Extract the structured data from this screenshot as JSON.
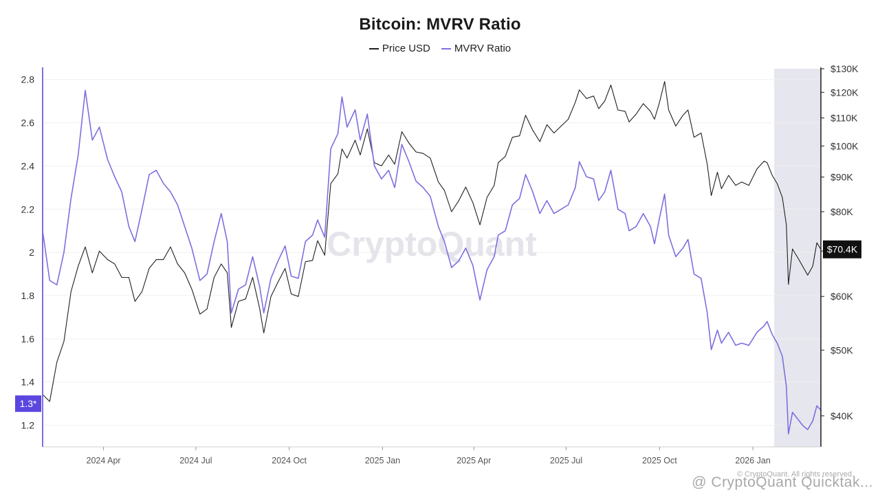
{
  "chart_data": {
    "type": "line",
    "title": "Bitcoin: MVRV Ratio",
    "legend": {
      "position": "top-center",
      "entries": [
        "Price USD",
        "MVRV Ratio"
      ]
    },
    "x_ticks": [
      "2024 Apr",
      "2024 Jul",
      "2024 Oct",
      "2025 Jan",
      "2025 Apr",
      "2025 Jul",
      "2025 Oct",
      "2026 Jan"
    ],
    "x_range": [
      "2024-02-01",
      "2026-03-09"
    ],
    "y_left": {
      "label": "",
      "ticks": [
        "1.2",
        "1.4",
        "1.6",
        "1.8",
        "2",
        "2.2",
        "2.4",
        "2.6",
        "2.8"
      ],
      "range": [
        1.1,
        2.85
      ],
      "scale": "linear"
    },
    "y_right": {
      "label": "",
      "ticks": [
        "$40K",
        "$50K",
        "$60K",
        "$70K",
        "$80K",
        "$90K",
        "$100K",
        "$110K",
        "$120K",
        "$130K"
      ],
      "range": [
        36000,
        130000
      ],
      "scale": "log"
    },
    "current_labels": {
      "mvrv": "1.3*",
      "price": "$70.4K"
    },
    "highlight_region": {
      "start": "2026-01-22",
      "end": "2026-03-09"
    },
    "grid": true,
    "series": [
      {
        "name": "Price USD",
        "color": "#1f1f1f",
        "points": [
          [
            "2024-02-01",
            43000
          ],
          [
            "2024-02-08",
            42000
          ],
          [
            "2024-02-15",
            48000
          ],
          [
            "2024-02-22",
            51500
          ],
          [
            "2024-02-29",
            61000
          ],
          [
            "2024-03-07",
            66500
          ],
          [
            "2024-03-14",
            71000
          ],
          [
            "2024-03-21",
            65000
          ],
          [
            "2024-03-28",
            70000
          ],
          [
            "2024-04-05",
            68000
          ],
          [
            "2024-04-12",
            67000
          ],
          [
            "2024-04-19",
            64000
          ],
          [
            "2024-04-26",
            64000
          ],
          [
            "2024-05-02",
            59000
          ],
          [
            "2024-05-09",
            61000
          ],
          [
            "2024-05-16",
            66000
          ],
          [
            "2024-05-23",
            68000
          ],
          [
            "2024-05-30",
            68000
          ],
          [
            "2024-06-06",
            71000
          ],
          [
            "2024-06-13",
            67000
          ],
          [
            "2024-06-20",
            65000
          ],
          [
            "2024-06-27",
            61500
          ],
          [
            "2024-07-05",
            56500
          ],
          [
            "2024-07-12",
            57500
          ],
          [
            "2024-07-19",
            64000
          ],
          [
            "2024-07-26",
            67000
          ],
          [
            "2024-08-01",
            65000
          ],
          [
            "2024-08-05",
            54000
          ],
          [
            "2024-08-12",
            59000
          ],
          [
            "2024-08-19",
            59500
          ],
          [
            "2024-08-26",
            64000
          ],
          [
            "2024-09-02",
            57500
          ],
          [
            "2024-09-06",
            53000
          ],
          [
            "2024-09-13",
            60000
          ],
          [
            "2024-09-20",
            63000
          ],
          [
            "2024-09-27",
            66000
          ],
          [
            "2024-10-03",
            60500
          ],
          [
            "2024-10-10",
            60000
          ],
          [
            "2024-10-17",
            67500
          ],
          [
            "2024-10-24",
            67800
          ],
          [
            "2024-10-29",
            72500
          ],
          [
            "2024-11-05",
            69000
          ],
          [
            "2024-11-11",
            88000
          ],
          [
            "2024-11-18",
            91000
          ],
          [
            "2024-11-22",
            99000
          ],
          [
            "2024-11-27",
            96000
          ],
          [
            "2024-12-05",
            102000
          ],
          [
            "2024-12-10",
            97000
          ],
          [
            "2024-12-17",
            106000
          ],
          [
            "2024-12-24",
            94500
          ],
          [
            "2024-12-31",
            93500
          ],
          [
            "2025-01-07",
            97000
          ],
          [
            "2025-01-13",
            94000
          ],
          [
            "2025-01-20",
            105000
          ],
          [
            "2025-01-27",
            101000
          ],
          [
            "2025-02-03",
            98000
          ],
          [
            "2025-02-10",
            97500
          ],
          [
            "2025-02-17",
            96000
          ],
          [
            "2025-02-25",
            88500
          ],
          [
            "2025-03-03",
            86000
          ],
          [
            "2025-03-10",
            80000
          ],
          [
            "2025-03-17",
            83000
          ],
          [
            "2025-03-24",
            87000
          ],
          [
            "2025-03-31",
            82500
          ],
          [
            "2025-04-07",
            76500
          ],
          [
            "2025-04-14",
            84000
          ],
          [
            "2025-04-21",
            87500
          ],
          [
            "2025-04-25",
            94500
          ],
          [
            "2025-05-02",
            96500
          ],
          [
            "2025-05-09",
            103000
          ],
          [
            "2025-05-16",
            103500
          ],
          [
            "2025-05-22",
            111000
          ],
          [
            "2025-05-29",
            105500
          ],
          [
            "2025-06-05",
            101500
          ],
          [
            "2025-06-12",
            107500
          ],
          [
            "2025-06-19",
            104500
          ],
          [
            "2025-06-26",
            107000
          ],
          [
            "2025-07-03",
            109500
          ],
          [
            "2025-07-10",
            116000
          ],
          [
            "2025-07-14",
            121000
          ],
          [
            "2025-07-21",
            117500
          ],
          [
            "2025-07-28",
            118500
          ],
          [
            "2025-08-02",
            113500
          ],
          [
            "2025-08-08",
            116500
          ],
          [
            "2025-08-14",
            123000
          ],
          [
            "2025-08-21",
            113000
          ],
          [
            "2025-08-28",
            112500
          ],
          [
            "2025-09-01",
            108500
          ],
          [
            "2025-09-08",
            111500
          ],
          [
            "2025-09-15",
            115500
          ],
          [
            "2025-09-22",
            112500
          ],
          [
            "2025-09-26",
            109500
          ],
          [
            "2025-10-01",
            116000
          ],
          [
            "2025-10-06",
            124500
          ],
          [
            "2025-10-10",
            113000
          ],
          [
            "2025-10-17",
            107000
          ],
          [
            "2025-10-24",
            111000
          ],
          [
            "2025-10-29",
            113000
          ],
          [
            "2025-11-04",
            103000
          ],
          [
            "2025-11-11",
            104500
          ],
          [
            "2025-11-17",
            94000
          ],
          [
            "2025-11-21",
            84500
          ],
          [
            "2025-11-27",
            91500
          ],
          [
            "2025-12-01",
            86500
          ],
          [
            "2025-12-08",
            90500
          ],
          [
            "2025-12-15",
            87500
          ],
          [
            "2025-12-21",
            88500
          ],
          [
            "2025-12-28",
            87500
          ],
          [
            "2026-01-05",
            92500
          ],
          [
            "2026-01-12",
            95000
          ],
          [
            "2026-01-15",
            94500
          ],
          [
            "2026-01-20",
            90500
          ],
          [
            "2026-01-25",
            88000
          ],
          [
            "2026-01-30",
            84000
          ],
          [
            "2026-02-03",
            76500
          ],
          [
            "2026-02-05",
            62500
          ],
          [
            "2026-02-09",
            70500
          ],
          [
            "2026-02-14",
            68500
          ],
          [
            "2026-02-19",
            66500
          ],
          [
            "2026-02-24",
            64500
          ],
          [
            "2026-03-01",
            66500
          ],
          [
            "2026-03-05",
            72000
          ],
          [
            "2026-03-09",
            70400
          ]
        ]
      },
      {
        "name": "MVRV Ratio",
        "color": "#7b6fe0",
        "points": [
          [
            "2024-02-01",
            2.1
          ],
          [
            "2024-02-08",
            1.87
          ],
          [
            "2024-02-15",
            1.85
          ],
          [
            "2024-02-22",
            2.0
          ],
          [
            "2024-02-29",
            2.25
          ],
          [
            "2024-03-07",
            2.45
          ],
          [
            "2024-03-14",
            2.75
          ],
          [
            "2024-03-21",
            2.52
          ],
          [
            "2024-03-28",
            2.58
          ],
          [
            "2024-04-05",
            2.43
          ],
          [
            "2024-04-12",
            2.35
          ],
          [
            "2024-04-19",
            2.28
          ],
          [
            "2024-04-26",
            2.12
          ],
          [
            "2024-05-02",
            2.05
          ],
          [
            "2024-05-09",
            2.2
          ],
          [
            "2024-05-16",
            2.36
          ],
          [
            "2024-05-23",
            2.38
          ],
          [
            "2024-05-30",
            2.32
          ],
          [
            "2024-06-06",
            2.28
          ],
          [
            "2024-06-13",
            2.22
          ],
          [
            "2024-06-20",
            2.12
          ],
          [
            "2024-06-27",
            2.02
          ],
          [
            "2024-07-05",
            1.87
          ],
          [
            "2024-07-12",
            1.9
          ],
          [
            "2024-07-19",
            2.05
          ],
          [
            "2024-07-26",
            2.18
          ],
          [
            "2024-08-01",
            2.05
          ],
          [
            "2024-08-05",
            1.72
          ],
          [
            "2024-08-12",
            1.83
          ],
          [
            "2024-08-19",
            1.85
          ],
          [
            "2024-08-26",
            1.98
          ],
          [
            "2024-09-02",
            1.84
          ],
          [
            "2024-09-06",
            1.72
          ],
          [
            "2024-09-13",
            1.88
          ],
          [
            "2024-09-20",
            1.96
          ],
          [
            "2024-09-27",
            2.03
          ],
          [
            "2024-10-03",
            1.89
          ],
          [
            "2024-10-10",
            1.88
          ],
          [
            "2024-10-17",
            2.05
          ],
          [
            "2024-10-24",
            2.08
          ],
          [
            "2024-10-29",
            2.15
          ],
          [
            "2024-11-05",
            2.07
          ],
          [
            "2024-11-11",
            2.48
          ],
          [
            "2024-11-18",
            2.55
          ],
          [
            "2024-11-22",
            2.72
          ],
          [
            "2024-11-27",
            2.58
          ],
          [
            "2024-12-05",
            2.66
          ],
          [
            "2024-12-10",
            2.52
          ],
          [
            "2024-12-17",
            2.64
          ],
          [
            "2024-12-24",
            2.4
          ],
          [
            "2024-12-31",
            2.34
          ],
          [
            "2025-01-07",
            2.38
          ],
          [
            "2025-01-13",
            2.3
          ],
          [
            "2025-01-20",
            2.5
          ],
          [
            "2025-01-27",
            2.42
          ],
          [
            "2025-02-03",
            2.33
          ],
          [
            "2025-02-10",
            2.3
          ],
          [
            "2025-02-17",
            2.26
          ],
          [
            "2025-02-25",
            2.12
          ],
          [
            "2025-03-03",
            2.05
          ],
          [
            "2025-03-10",
            1.93
          ],
          [
            "2025-03-17",
            1.96
          ],
          [
            "2025-03-24",
            2.02
          ],
          [
            "2025-03-31",
            1.94
          ],
          [
            "2025-04-07",
            1.78
          ],
          [
            "2025-04-14",
            1.92
          ],
          [
            "2025-04-21",
            1.98
          ],
          [
            "2025-04-25",
            2.08
          ],
          [
            "2025-05-02",
            2.1
          ],
          [
            "2025-05-09",
            2.22
          ],
          [
            "2025-05-16",
            2.25
          ],
          [
            "2025-05-22",
            2.36
          ],
          [
            "2025-05-29",
            2.28
          ],
          [
            "2025-06-05",
            2.18
          ],
          [
            "2025-06-12",
            2.24
          ],
          [
            "2025-06-19",
            2.18
          ],
          [
            "2025-06-26",
            2.2
          ],
          [
            "2025-07-03",
            2.22
          ],
          [
            "2025-07-10",
            2.3
          ],
          [
            "2025-07-14",
            2.42
          ],
          [
            "2025-07-21",
            2.35
          ],
          [
            "2025-07-28",
            2.34
          ],
          [
            "2025-08-02",
            2.24
          ],
          [
            "2025-08-08",
            2.28
          ],
          [
            "2025-08-14",
            2.38
          ],
          [
            "2025-08-21",
            2.2
          ],
          [
            "2025-08-28",
            2.18
          ],
          [
            "2025-09-01",
            2.1
          ],
          [
            "2025-09-08",
            2.12
          ],
          [
            "2025-09-15",
            2.18
          ],
          [
            "2025-09-22",
            2.12
          ],
          [
            "2025-09-26",
            2.04
          ],
          [
            "2025-10-01",
            2.16
          ],
          [
            "2025-10-06",
            2.27
          ],
          [
            "2025-10-10",
            2.08
          ],
          [
            "2025-10-17",
            1.98
          ],
          [
            "2025-10-24",
            2.02
          ],
          [
            "2025-10-29",
            2.06
          ],
          [
            "2025-11-04",
            1.9
          ],
          [
            "2025-11-11",
            1.88
          ],
          [
            "2025-11-17",
            1.72
          ],
          [
            "2025-11-21",
            1.55
          ],
          [
            "2025-11-27",
            1.64
          ],
          [
            "2025-12-01",
            1.58
          ],
          [
            "2025-12-08",
            1.63
          ],
          [
            "2025-12-15",
            1.57
          ],
          [
            "2025-12-21",
            1.58
          ],
          [
            "2025-12-28",
            1.57
          ],
          [
            "2026-01-05",
            1.63
          ],
          [
            "2026-01-12",
            1.66
          ],
          [
            "2026-01-15",
            1.68
          ],
          [
            "2026-01-20",
            1.62
          ],
          [
            "2026-01-25",
            1.58
          ],
          [
            "2026-01-30",
            1.52
          ],
          [
            "2026-02-03",
            1.38
          ],
          [
            "2026-02-05",
            1.16
          ],
          [
            "2026-02-09",
            1.26
          ],
          [
            "2026-02-14",
            1.23
          ],
          [
            "2026-02-19",
            1.2
          ],
          [
            "2026-02-24",
            1.18
          ],
          [
            "2026-03-01",
            1.22
          ],
          [
            "2026-03-05",
            1.29
          ],
          [
            "2026-03-09",
            1.27
          ]
        ]
      }
    ]
  },
  "watermark": "CryptoQuant",
  "copyright": "© CryptoQuant. All rights reserved.",
  "footer": "@ CryptoQuant Quicktak..."
}
